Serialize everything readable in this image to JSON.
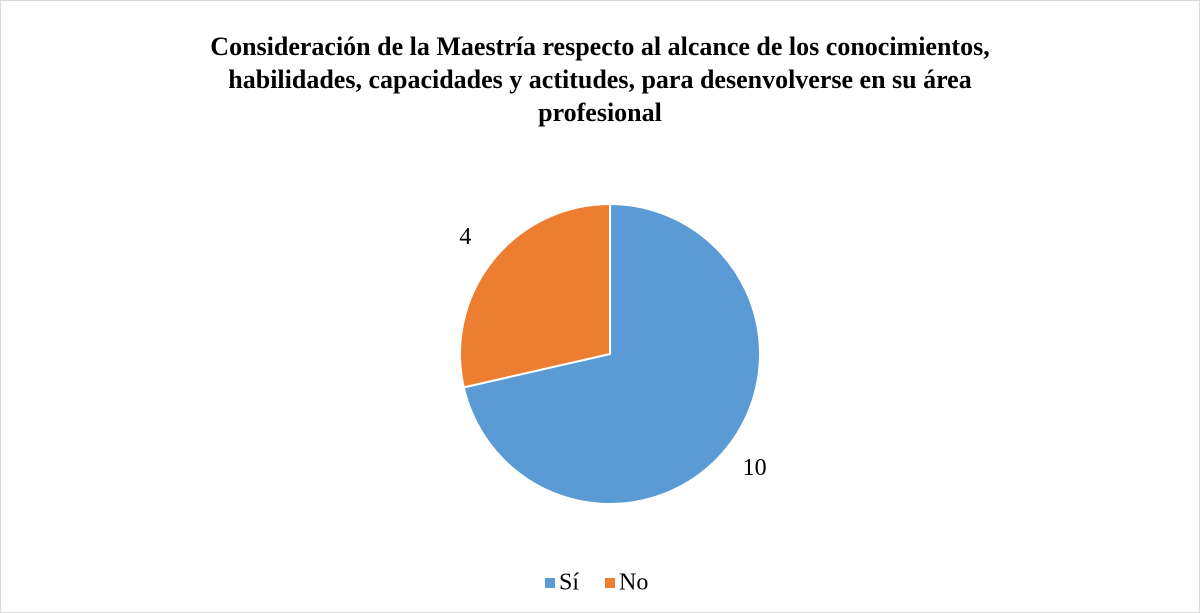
{
  "chart_data": {
    "type": "pie",
    "title": "Consideración de la Maestría respecto al alcance de los conocimientos, habilidades, capacidades y actitudes, para desenvolverse en su área profesional",
    "categories": [
      "Sí",
      "No"
    ],
    "values": [
      10,
      4
    ],
    "colors": [
      "#5b9bd5",
      "#ed7d31"
    ],
    "legend": "bottom"
  }
}
